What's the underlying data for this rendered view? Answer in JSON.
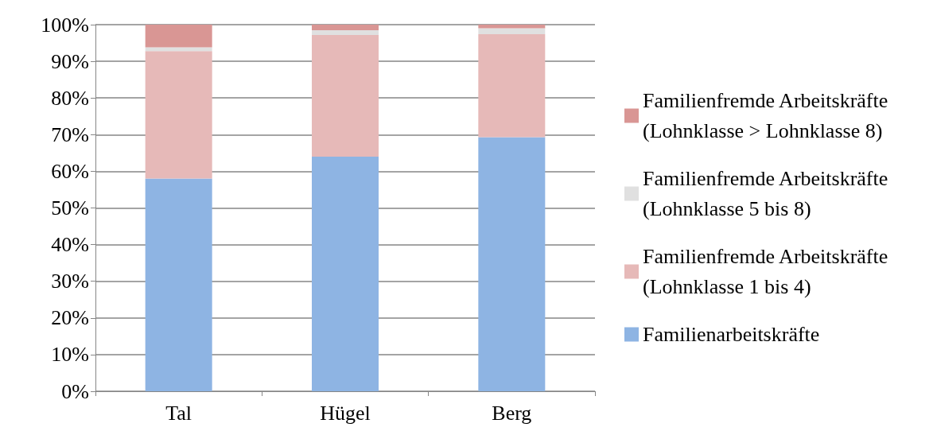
{
  "chart_data": {
    "type": "bar",
    "stacked": true,
    "categories": [
      "Tal",
      "Hügel",
      "Berg"
    ],
    "series": [
      {
        "name": "Familienarbeitskräfte",
        "color": "#8eb4e3",
        "values": [
          58.0,
          64.0,
          69.3
        ]
      },
      {
        "name": "Familienfremde Arbeitskräfte (Lohnklasse 1 bis 4)",
        "color": "#e6b9b8",
        "values": [
          34.8,
          33.2,
          28.1
        ]
      },
      {
        "name": "Familienfremde Arbeitskräfte (Lohnklasse 5 bis 8)",
        "color": "#e0e0e0",
        "values": [
          1.0,
          1.3,
          1.6
        ]
      },
      {
        "name": "Familienfremde Arbeitskräfte (Lohnklasse > Lohnklasse 8)",
        "color": "#d99694",
        "values": [
          6.2,
          1.5,
          1.0
        ]
      }
    ],
    "ylim": [
      0,
      100
    ],
    "yticks": [
      {
        "value": 0,
        "label": "0%"
      },
      {
        "value": 10,
        "label": "10%"
      },
      {
        "value": 20,
        "label": "20%"
      },
      {
        "value": 30,
        "label": "30%"
      },
      {
        "value": 40,
        "label": "40%"
      },
      {
        "value": 50,
        "label": "50%"
      },
      {
        "value": 60,
        "label": "60%"
      },
      {
        "value": 70,
        "label": "70%"
      },
      {
        "value": 80,
        "label": "80%"
      },
      {
        "value": 90,
        "label": "90%"
      },
      {
        "value": 100,
        "label": "100%"
      }
    ],
    "grid": "y",
    "legend": "right"
  }
}
